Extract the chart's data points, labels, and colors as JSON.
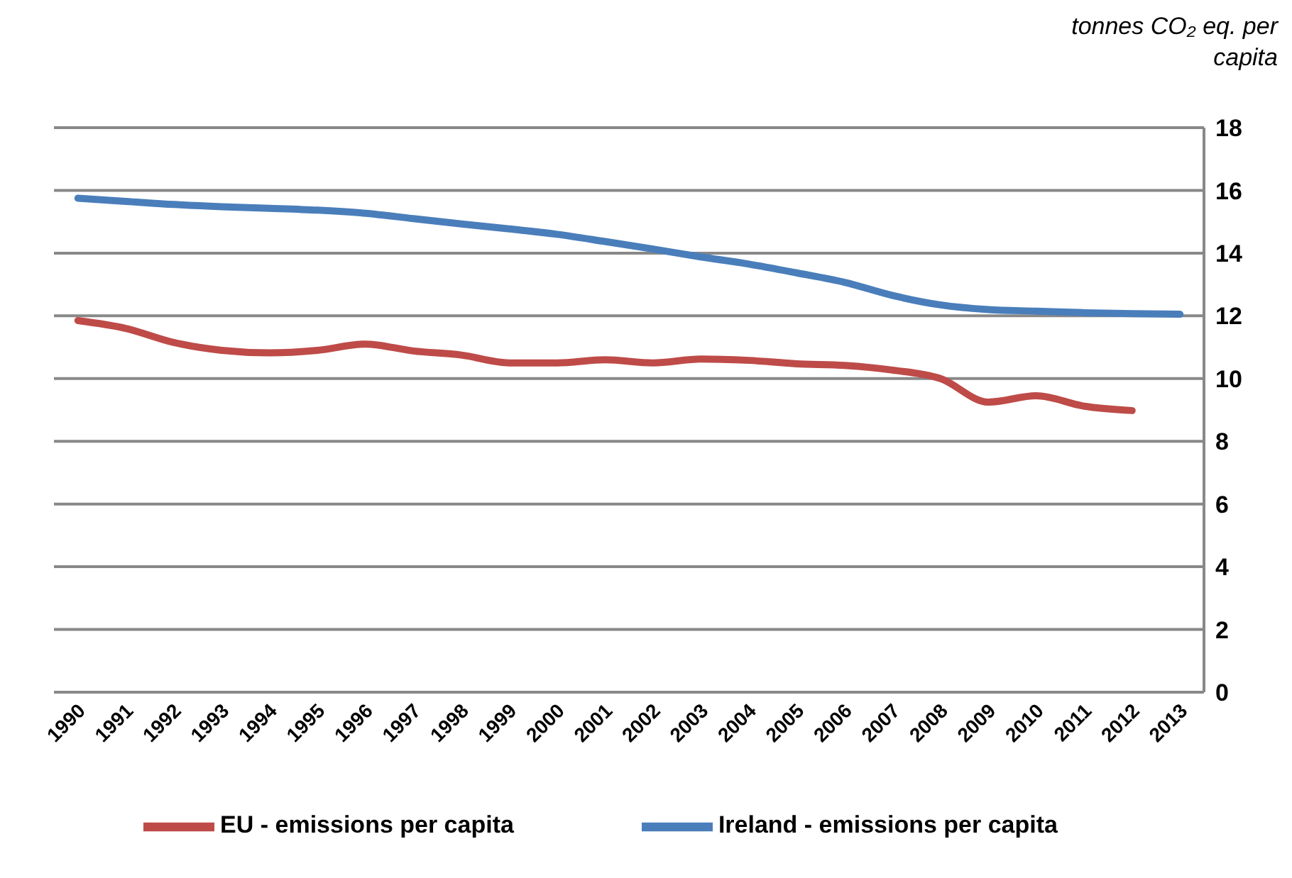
{
  "chart_data": {
    "type": "line",
    "ylabel": "tonnes CO₂ eq. per capita",
    "categories": [
      "1990",
      "1991",
      "1992",
      "1993",
      "1994",
      "1995",
      "1996",
      "1997",
      "1998",
      "1999",
      "2000",
      "2001",
      "2002",
      "2003",
      "2004",
      "2005",
      "2006",
      "2007",
      "2008",
      "2009",
      "2010",
      "2011",
      "2012",
      "2013"
    ],
    "series": [
      {
        "name": "Ireland - emissions per capita",
        "color": "#4a7ebb",
        "values": [
          15.75,
          15.65,
          15.55,
          15.48,
          15.43,
          15.37,
          15.27,
          15.1,
          14.93,
          14.77,
          14.6,
          14.37,
          14.13,
          13.88,
          13.65,
          13.37,
          13.07,
          12.65,
          12.35,
          12.2,
          12.15,
          12.1,
          12.07,
          12.05
        ]
      },
      {
        "name": "EU - emissions per capita",
        "color": "#be4b48",
        "values": [
          11.85,
          11.6,
          11.15,
          10.9,
          10.82,
          10.9,
          11.1,
          10.88,
          10.75,
          10.5,
          10.5,
          10.6,
          10.5,
          10.62,
          10.58,
          10.47,
          10.42,
          10.27,
          10.0,
          9.25,
          9.45,
          9.12,
          8.98,
          null
        ]
      }
    ],
    "ylim": [
      0,
      18
    ],
    "yticks": [
      0,
      2,
      4,
      6,
      8,
      10,
      12,
      14,
      16,
      18
    ],
    "grid": "y",
    "legend": "bottom",
    "marker": "none",
    "line_style": "solid"
  }
}
